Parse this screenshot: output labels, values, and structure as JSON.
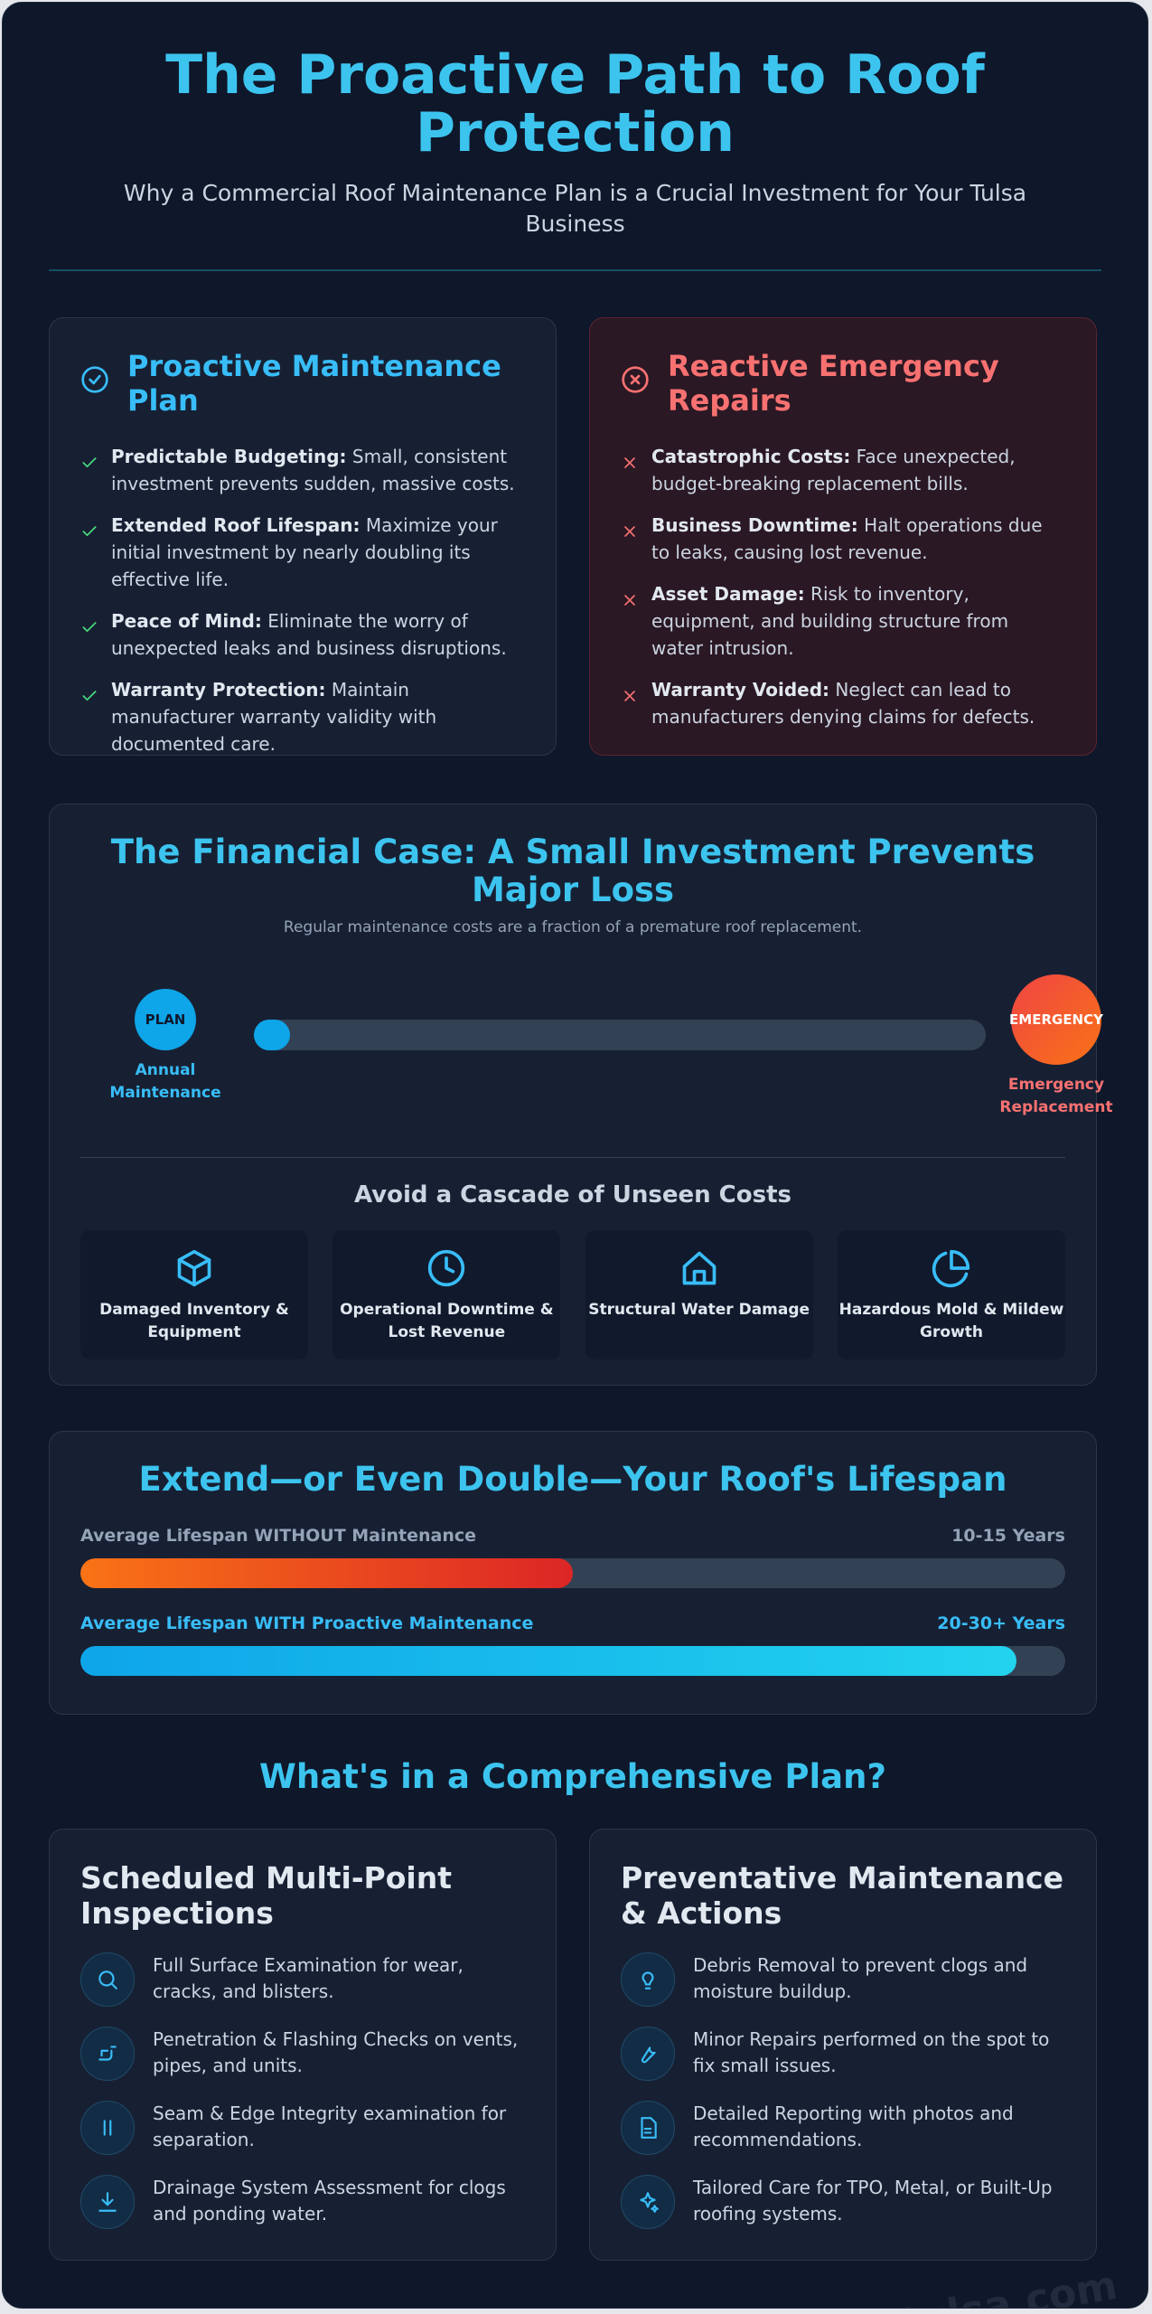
{
  "header": {
    "title": "The Proactive Path to Roof Protection",
    "subtitle": "Why a Commercial Roof Maintenance Plan is a Crucial Investment for Your Tulsa Business"
  },
  "comparison": [
    {
      "title": "Proactive Maintenance Plan",
      "items": [
        {
          "label": "Predictable Budgeting:",
          "text": "Small, consistent investment prevents sudden, massive costs."
        },
        {
          "label": "Extended Roof Lifespan:",
          "text": "Maximize your initial investment by nearly doubling its effective life."
        },
        {
          "label": "Peace of Mind:",
          "text": "Eliminate the worry of unexpected leaks and business disruptions."
        },
        {
          "label": "Warranty Protection:",
          "text": "Maintain manufacturer warranty validity with documented care."
        }
      ]
    },
    {
      "title": "Reactive Emergency Repairs",
      "items": [
        {
          "label": "Catastrophic Costs:",
          "text": "Face unexpected, budget-breaking replacement bills."
        },
        {
          "label": "Business Downtime:",
          "text": "Halt operations due to leaks, causing lost revenue."
        },
        {
          "label": "Asset Damage:",
          "text": "Risk to inventory, equipment, and building structure from water intrusion."
        },
        {
          "label": "Warranty Voided:",
          "text": "Neglect can lead to manufacturers denying claims for defects."
        }
      ]
    }
  ],
  "financial": {
    "title": "The Financial Case: A Small Investment Prevents Major Loss",
    "subtitle": "Regular maintenance costs are a fraction of a premature roof replacement.",
    "plan_badge": "PLAN",
    "plan_label": "Annual Maintenance",
    "emergency_badge": "EMERGENCY",
    "emergency_label": "Emergency Replacement",
    "cascade_title": "Avoid a Cascade of Unseen Costs",
    "cascade": [
      "Damaged Inventory & Equipment",
      "Operational Downtime & Lost Revenue",
      "Structural Water Damage",
      "Hazardous Mold & Mildew Growth"
    ]
  },
  "lifespan": {
    "title": "Extend—or Even Double—Your Roof's Lifespan",
    "bars": [
      {
        "label": "Average Lifespan WITHOUT Maintenance",
        "value": "10-15 Years"
      },
      {
        "label": "Average Lifespan WITH Proactive Maintenance",
        "value": "20-30+ Years"
      }
    ]
  },
  "plan": {
    "title": "What's in a Comprehensive Plan?",
    "columns": [
      {
        "title": "Scheduled Multi-Point Inspections",
        "items": [
          "Full Surface Examination for wear, cracks, and blisters.",
          "Penetration & Flashing Checks on vents, pipes, and units.",
          "Seam & Edge Integrity examination for separation.",
          "Drainage System Assessment for clogs and ponding water."
        ]
      },
      {
        "title": "Preventative Maintenance & Actions",
        "items": [
          "Debris Removal to prevent clogs and moisture buildup.",
          "Minor Repairs performed on the spot to fix small issues.",
          "Detailed Reporting with photos and recommendations.",
          "Tailored Care for TPO, Metal, or Built-Up roofing systems."
        ]
      }
    ]
  },
  "watermark": "roofintulsa.com"
}
